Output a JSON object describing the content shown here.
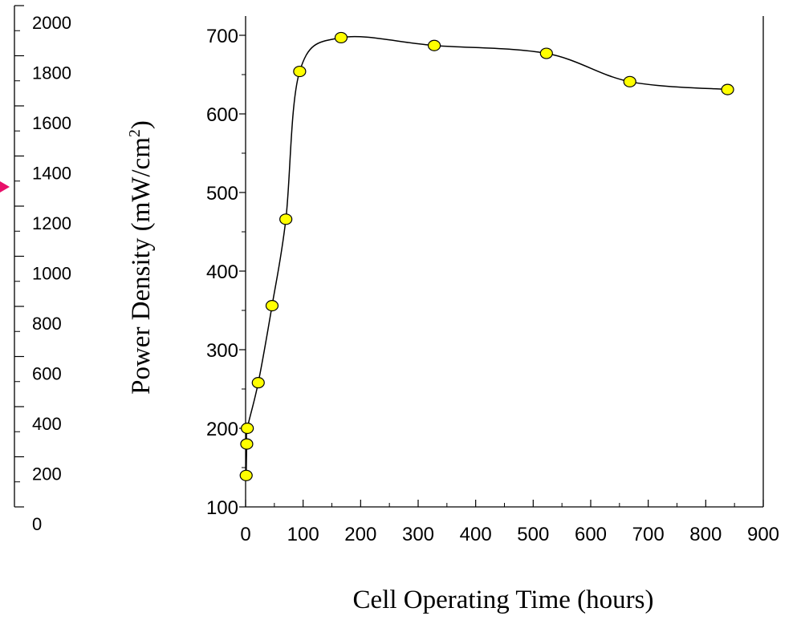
{
  "chart_data": {
    "type": "line",
    "xlabel": "Cell Operating Time (hours)",
    "ylabel_main": "Power Density (mW/cm",
    "ylabel_sup": "2",
    "ylabel_close": ")",
    "xlim": [
      0,
      900
    ],
    "ylim": [
      100,
      700
    ],
    "x_ticks": [
      "0",
      "100",
      "200",
      "300",
      "400",
      "500",
      "600",
      "700",
      "800",
      "900"
    ],
    "y_ticks": [
      "100",
      "200",
      "300",
      "400",
      "500",
      "600",
      "700"
    ],
    "left_axis_ticks": [
      "0",
      "200",
      "400",
      "600",
      "800",
      "1000",
      "1200",
      "1400",
      "1600",
      "1800",
      "2000"
    ],
    "marker_color": "#ffff00",
    "arrow_color": "#e8106a",
    "series": [
      {
        "x": [
          1,
          2,
          3,
          22,
          46,
          70,
          94,
          166,
          328,
          523,
          668,
          838
        ],
        "y": [
          140,
          180,
          200,
          258,
          356,
          466,
          654,
          697,
          687,
          677,
          641,
          631
        ]
      }
    ]
  }
}
